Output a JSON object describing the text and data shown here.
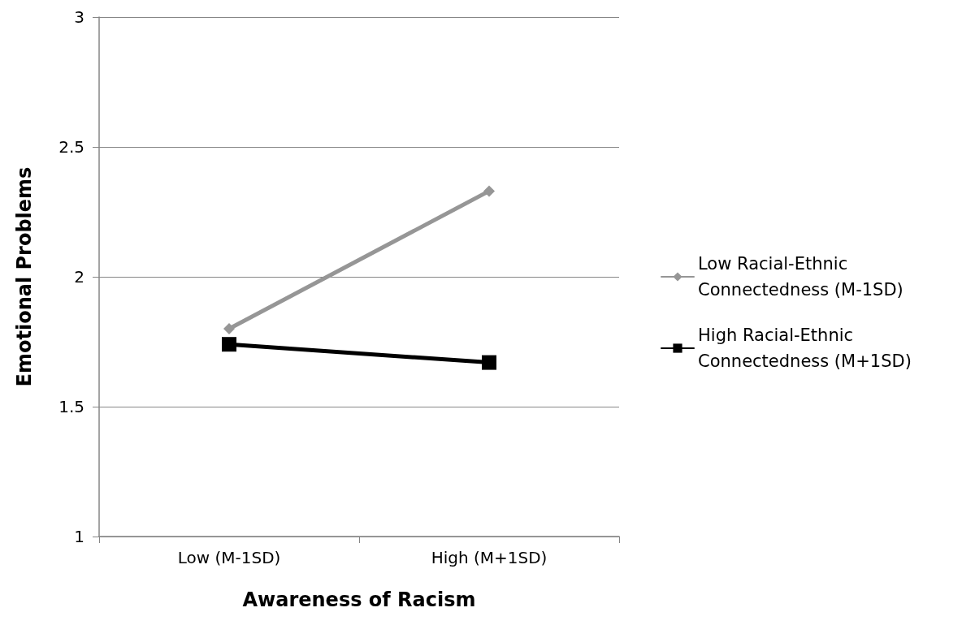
{
  "chart_data": {
    "type": "line",
    "xlabel": "Awareness of Racism",
    "ylabel": "Emotional Problems",
    "categories": [
      "Low (M-1SD)",
      "High (M+1SD)"
    ],
    "series": [
      {
        "name": "Low Racial-Ethnic Connectedness (M-1SD)",
        "color": "#969696",
        "values": [
          1.8,
          2.33
        ],
        "marker": "diamond"
      },
      {
        "name": "High Racial-Ethnic Connectedness (M+1SD)",
        "color": "#000000",
        "values": [
          1.74,
          1.67
        ],
        "marker": "square"
      }
    ],
    "ylim": [
      1,
      3
    ],
    "yticks": [
      1,
      1.5,
      2,
      2.5,
      3
    ],
    "grid": "y",
    "legend": "right",
    "line_style": "solid"
  }
}
